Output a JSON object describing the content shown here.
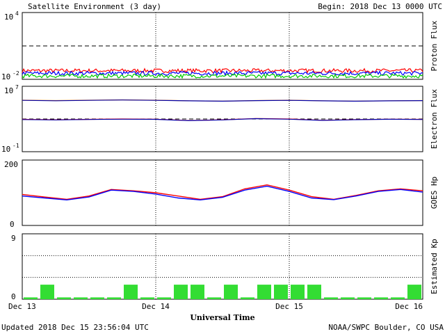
{
  "header": {
    "title": "Satellite Environment (3 day)",
    "begin": "Begin:  2018 Dec 13 0000 UTC"
  },
  "footer": {
    "updated": "Updated 2018 Dec 15 23:56:04 UTC",
    "credit": "NOAA/SWPC Boulder, CO USA",
    "xlabel": "Universal Time"
  },
  "chart_data": [
    {
      "type": "line",
      "panel": "proton",
      "ylabel": "Proton Flux",
      "yscale": "log",
      "ylim": [
        0.01,
        10000
      ],
      "ytick_labels": {
        "top_base": "10",
        "top_exp": "4",
        "bottom_base": "10",
        "bottom_exp": "-2"
      },
      "threshold": 10,
      "series": [
        {
          "color": "#ff0000",
          "level": 0.06
        },
        {
          "color": "#0000ff",
          "level": 0.035
        },
        {
          "color": "#00cc00",
          "level": 0.02
        }
      ]
    },
    {
      "type": "line",
      "panel": "electron",
      "ylabel": "Electron Flux",
      "yscale": "log",
      "ylim": [
        0.1,
        10000000
      ],
      "ytick_labels": {
        "top_base": "10",
        "top_exp": "7",
        "bottom_base": "10",
        "bottom_exp": "-1"
      },
      "threshold": 1000,
      "series": [
        {
          "color": "#ff8800",
          "x": [
            0,
            6,
            12,
            18,
            24,
            30,
            36,
            42,
            48,
            54,
            60,
            66,
            72
          ],
          "y": [
            200000,
            180000,
            200000,
            220000,
            200000,
            170000,
            150000,
            180000,
            200000,
            170000,
            150000,
            170000,
            180000
          ]
        },
        {
          "color": "#0000aa",
          "x": [
            0,
            6,
            12,
            18,
            24,
            30,
            36,
            42,
            48,
            54,
            60,
            66,
            72
          ],
          "y": [
            190000,
            170000,
            190000,
            210000,
            190000,
            165000,
            150000,
            175000,
            190000,
            165000,
            150000,
            165000,
            175000
          ]
        },
        {
          "color": "#ff0000",
          "x": [
            0,
            6,
            12,
            18,
            24,
            30,
            36,
            42,
            48,
            54,
            60,
            66,
            72
          ],
          "y": [
            900,
            800,
            900,
            1000,
            950,
            650,
            800,
            1150,
            1000,
            700,
            850,
            950,
            900
          ]
        },
        {
          "color": "#0000aa",
          "x": [
            0,
            6,
            12,
            18,
            24,
            30,
            36,
            42,
            48,
            54,
            60,
            66,
            72
          ],
          "y": [
            850,
            780,
            880,
            950,
            900,
            620,
            780,
            1100,
            950,
            680,
            820,
            920,
            870
          ]
        }
      ]
    },
    {
      "type": "line",
      "panel": "goes_hp",
      "ylabel": "GOES Hp",
      "ylim": [
        0,
        200
      ],
      "ytick_labels": [
        "0",
        "200"
      ],
      "x": [
        0,
        4,
        8,
        12,
        16,
        20,
        24,
        28,
        32,
        36,
        40,
        44,
        48,
        52,
        56,
        60,
        64,
        68,
        72
      ],
      "series": [
        {
          "color": "#ff0000",
          "y": [
            95,
            87,
            80,
            90,
            110,
            106,
            100,
            90,
            80,
            88,
            112,
            124,
            108,
            88,
            80,
            92,
            106,
            112,
            106
          ]
        },
        {
          "color": "#0000ff",
          "y": [
            90,
            84,
            78,
            87,
            108,
            104,
            96,
            84,
            78,
            86,
            108,
            120,
            104,
            84,
            79,
            90,
            104,
            110,
            102
          ]
        }
      ]
    },
    {
      "type": "bar",
      "panel": "kp",
      "ylabel": "Estimated Kp",
      "ylim": [
        0,
        9
      ],
      "ytick_labels": [
        "0",
        "9"
      ],
      "values": [
        0,
        2,
        0,
        0,
        0,
        0,
        2,
        0,
        0,
        2,
        2,
        0,
        2,
        0,
        2,
        2,
        2,
        2,
        0,
        0,
        0,
        0,
        0,
        2
      ],
      "color": "#33dd33"
    }
  ],
  "x_axis": {
    "range_hours": [
      0,
      72
    ],
    "ticks": [
      {
        "hour": 0,
        "label": "Dec 13"
      },
      {
        "hour": 24,
        "label": "Dec 14"
      },
      {
        "hour": 48,
        "label": "Dec 15"
      },
      {
        "hour": 72,
        "label": "Dec 16"
      }
    ]
  }
}
